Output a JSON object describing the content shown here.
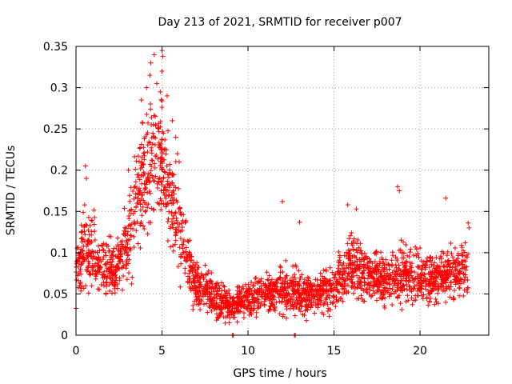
{
  "chart_data": {
    "type": "scatter",
    "title": "Day 213 of 2021, SRMTID for receiver p007",
    "xlabel": "GPS time / hours",
    "ylabel": "SRMTID / TECUs",
    "xlim": [
      0,
      24
    ],
    "ylim": [
      0,
      0.35
    ],
    "xticks": [
      "0",
      "5",
      "10",
      "15",
      "20"
    ],
    "xtick_values": [
      0,
      5,
      10,
      15,
      20
    ],
    "yticks": [
      "0",
      "0.05",
      "0.1",
      "0.15",
      "0.2",
      "0.25",
      "0.3",
      "0.35"
    ],
    "ytick_values": [
      0,
      0.05,
      0.1,
      0.15,
      0.2,
      0.25,
      0.3,
      0.35
    ],
    "grid": true,
    "marker": "plus",
    "series_color": "#ff0000",
    "envelope": {
      "description": "typical SRMTID level vs hour (scatter centre and spread)",
      "hours": [
        0,
        0.5,
        1,
        1.5,
        2,
        2.5,
        3,
        3.5,
        4,
        4.5,
        5,
        5.5,
        6,
        6.5,
        7,
        7.5,
        8,
        8.5,
        9,
        9.5,
        10,
        11,
        12,
        13,
        14,
        15,
        16,
        17,
        18,
        19,
        20,
        21,
        22,
        22.8
      ],
      "center": [
        0.07,
        0.11,
        0.1,
        0.085,
        0.08,
        0.085,
        0.11,
        0.16,
        0.2,
        0.22,
        0.21,
        0.16,
        0.14,
        0.09,
        0.06,
        0.055,
        0.045,
        0.04,
        0.035,
        0.04,
        0.045,
        0.05,
        0.055,
        0.05,
        0.05,
        0.06,
        0.085,
        0.075,
        0.07,
        0.075,
        0.07,
        0.07,
        0.075,
        0.08
      ],
      "spread": [
        0.03,
        0.04,
        0.035,
        0.03,
        0.03,
        0.03,
        0.04,
        0.06,
        0.07,
        0.07,
        0.06,
        0.05,
        0.05,
        0.03,
        0.025,
        0.025,
        0.02,
        0.02,
        0.015,
        0.02,
        0.02,
        0.02,
        0.025,
        0.025,
        0.02,
        0.025,
        0.03,
        0.025,
        0.025,
        0.03,
        0.025,
        0.025,
        0.025,
        0.03
      ]
    },
    "highlight_points": [
      {
        "x": 0.55,
        "y": 0.205
      },
      {
        "x": 0.6,
        "y": 0.19
      },
      {
        "x": 3.05,
        "y": 0.2
      },
      {
        "x": 3.8,
        "y": 0.285
      },
      {
        "x": 4.1,
        "y": 0.3
      },
      {
        "x": 4.3,
        "y": 0.315
      },
      {
        "x": 4.35,
        "y": 0.33
      },
      {
        "x": 4.55,
        "y": 0.34
      },
      {
        "x": 4.7,
        "y": 0.305
      },
      {
        "x": 5.0,
        "y": 0.345
      },
      {
        "x": 5.05,
        "y": 0.338
      },
      {
        "x": 5.0,
        "y": 0.32
      },
      {
        "x": 4.9,
        "y": 0.295
      },
      {
        "x": 5.3,
        "y": 0.29
      },
      {
        "x": 5.6,
        "y": 0.26
      },
      {
        "x": 5.8,
        "y": 0.24
      },
      {
        "x": 5.9,
        "y": 0.22
      },
      {
        "x": 6.0,
        "y": 0.21
      },
      {
        "x": 12.0,
        "y": 0.162
      },
      {
        "x": 13.0,
        "y": 0.137
      },
      {
        "x": 15.8,
        "y": 0.158
      },
      {
        "x": 16.3,
        "y": 0.153
      },
      {
        "x": 18.7,
        "y": 0.18
      },
      {
        "x": 18.8,
        "y": 0.175
      },
      {
        "x": 21.5,
        "y": 0.166
      },
      {
        "x": 22.8,
        "y": 0.136
      },
      {
        "x": 22.85,
        "y": 0.13
      },
      {
        "x": 8.9,
        "y": 0.015
      },
      {
        "x": 9.1,
        "y": 0.0
      },
      {
        "x": 12.7,
        "y": 0.0
      },
      {
        "x": 12.75,
        "y": 0.0
      },
      {
        "x": 9.15,
        "y": 0.0
      }
    ],
    "n_generated_points": 2600,
    "random_seed": 213
  }
}
